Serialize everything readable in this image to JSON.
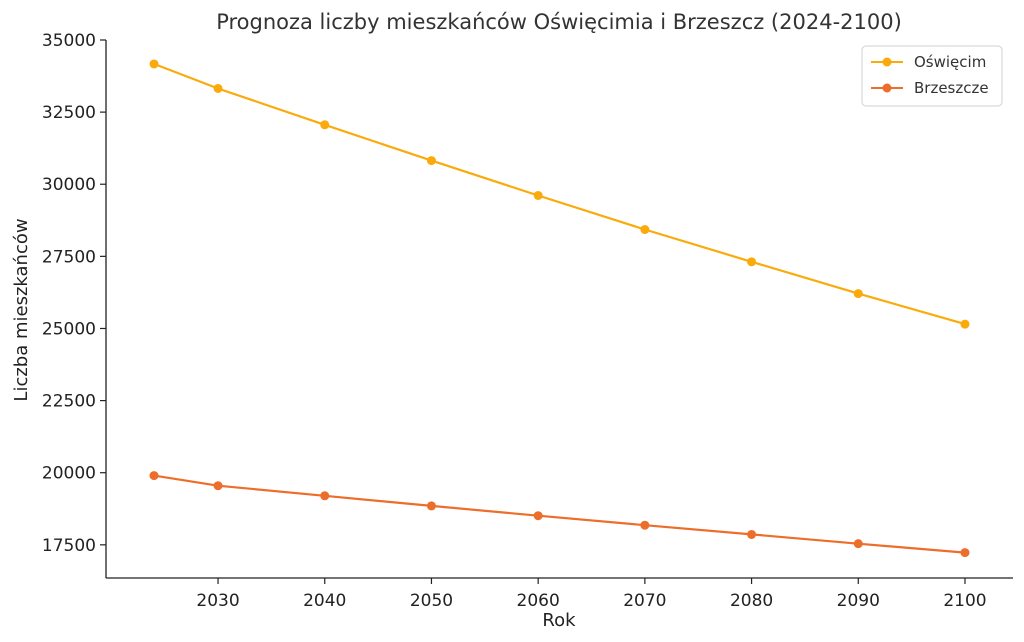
{
  "chart_data": {
    "type": "line",
    "title": "Prognoza liczby mieszkańców Oświęcimia i Brzeszcz (2024-2100)",
    "xlabel": "Rok",
    "ylabel": "Liczba mieszkańców",
    "x": [
      2024,
      2030,
      2040,
      2050,
      2060,
      2070,
      2080,
      2090,
      2100
    ],
    "xlim": [
      2019.5,
      2104.5
    ],
    "ylim": [
      16350,
      35000
    ],
    "xticks": [
      "2030",
      "2040",
      "2050",
      "2060",
      "2070",
      "2080",
      "2090",
      "2100"
    ],
    "yticks": [
      "17500",
      "20000",
      "22500",
      "25000",
      "27500",
      "30000",
      "32500",
      "35000"
    ],
    "grid": false,
    "legend_position": "top-right",
    "series": [
      {
        "name": "Oświęcim",
        "color": "#FBAA0C",
        "values": [
          34170,
          33320,
          32060,
          30820,
          29610,
          28430,
          27310,
          26210,
          25150
        ]
      },
      {
        "name": "Brzeszcze",
        "color": "#ED6D2A",
        "values": [
          19900,
          19550,
          19200,
          18850,
          18510,
          18180,
          17860,
          17540,
          17230
        ]
      }
    ]
  }
}
